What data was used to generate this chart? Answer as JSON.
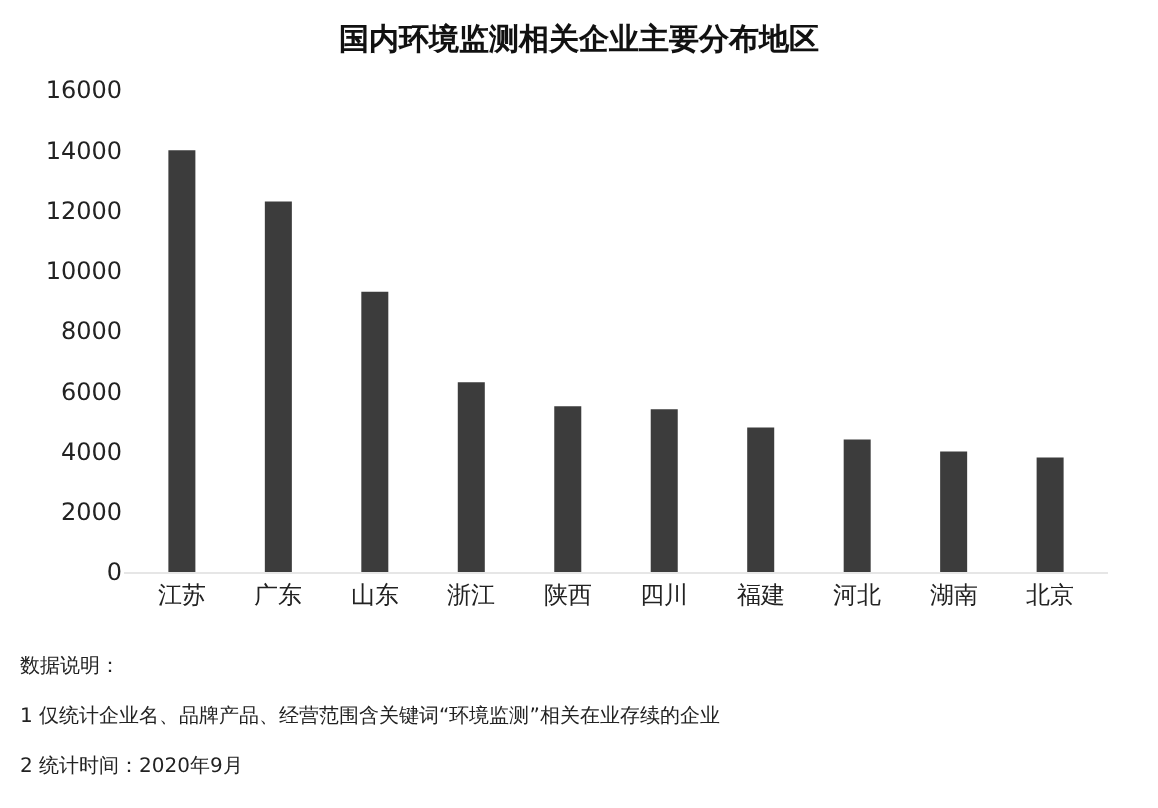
{
  "chart_data": {
    "type": "bar",
    "title": "国内环境监测相关企业主要分布地区",
    "categories": [
      "江苏",
      "广东",
      "山东",
      "浙江",
      "陕西",
      "四川",
      "福建",
      "河北",
      "湖南",
      "北京"
    ],
    "values": [
      14000,
      12300,
      9300,
      6300,
      5500,
      5400,
      4800,
      4400,
      4000,
      3800
    ],
    "color": "#3c3c3c",
    "ylim": [
      0,
      16000
    ],
    "yticks": [
      0,
      2000,
      4000,
      6000,
      8000,
      10000,
      12000,
      14000,
      16000
    ],
    "grid": false,
    "annotations": [
      "数据说明：",
      "1 仅统计企业名、品牌产品、经营范围含关键词“环境监测”相关在业存续的企业",
      "2 统计时间：2020年9月"
    ]
  }
}
